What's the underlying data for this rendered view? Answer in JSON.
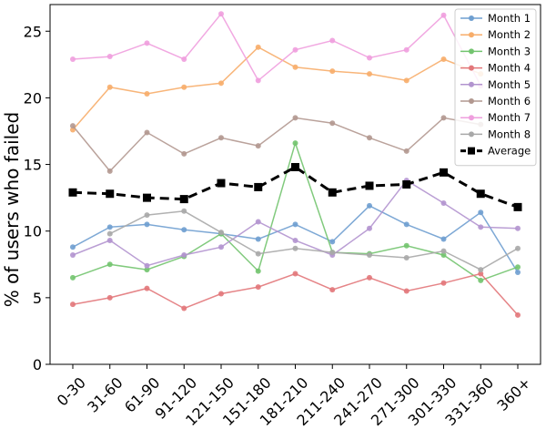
{
  "chart_data": {
    "type": "line",
    "title": "",
    "xlabel": "",
    "ylabel": "% of users who failed",
    "ylim": [
      0,
      27
    ],
    "yticks": [
      0,
      5,
      10,
      15,
      20,
      25
    ],
    "grid": false,
    "legend_position": "top-right",
    "categories": [
      "0-30",
      "31-60",
      "61-90",
      "91-120",
      "121-150",
      "151-180",
      "181-210",
      "211-240",
      "241-270",
      "271-300",
      "301-330",
      "331-360",
      "360+"
    ],
    "series": [
      {
        "name": "Month 1",
        "color": "#6f9fd0",
        "values": [
          8.8,
          10.3,
          10.5,
          10.1,
          9.8,
          9.4,
          10.5,
          9.2,
          11.9,
          10.5,
          9.4,
          11.4,
          6.9
        ]
      },
      {
        "name": "Month 2",
        "color": "#f7ad6a",
        "values": [
          17.6,
          20.8,
          20.3,
          20.8,
          21.1,
          23.8,
          22.3,
          22.0,
          21.8,
          21.3,
          22.9,
          21.8,
          null
        ]
      },
      {
        "name": "Month 3",
        "color": "#73c46f",
        "values": [
          6.5,
          7.5,
          7.1,
          8.1,
          9.8,
          7.0,
          16.6,
          8.4,
          8.3,
          8.9,
          8.2,
          6.3,
          7.3
        ]
      },
      {
        "name": "Month 4",
        "color": "#e2777a",
        "values": [
          4.5,
          5.0,
          5.7,
          4.2,
          5.3,
          5.8,
          6.8,
          5.6,
          6.5,
          5.5,
          6.1,
          6.8,
          3.7
        ]
      },
      {
        "name": "Month 5",
        "color": "#b294cf",
        "values": [
          8.2,
          9.3,
          7.4,
          8.2,
          8.8,
          10.7,
          9.3,
          8.2,
          10.2,
          13.8,
          12.1,
          10.3,
          10.2
        ]
      },
      {
        "name": "Month 6",
        "color": "#b29890",
        "values": [
          17.9,
          14.5,
          17.4,
          15.8,
          17.0,
          16.4,
          18.5,
          18.1,
          17.0,
          16.0,
          18.5,
          18.0,
          null
        ]
      },
      {
        "name": "Month 7",
        "color": "#ef9fde",
        "values": [
          22.9,
          23.1,
          24.1,
          22.9,
          26.3,
          21.3,
          23.6,
          24.3,
          23.0,
          23.6,
          26.2,
          20.9,
          null
        ]
      },
      {
        "name": "Month 8",
        "color": "#a8a8a8",
        "values": [
          null,
          9.8,
          11.2,
          11.5,
          9.9,
          8.3,
          8.7,
          8.4,
          8.2,
          8.0,
          8.5,
          7.1,
          8.7
        ]
      },
      {
        "name": "Average",
        "color": "#000000",
        "dashed": true,
        "values": [
          12.9,
          12.8,
          12.5,
          12.4,
          13.6,
          13.3,
          14.8,
          12.9,
          13.4,
          13.5,
          14.4,
          12.8,
          11.8
        ]
      }
    ]
  }
}
